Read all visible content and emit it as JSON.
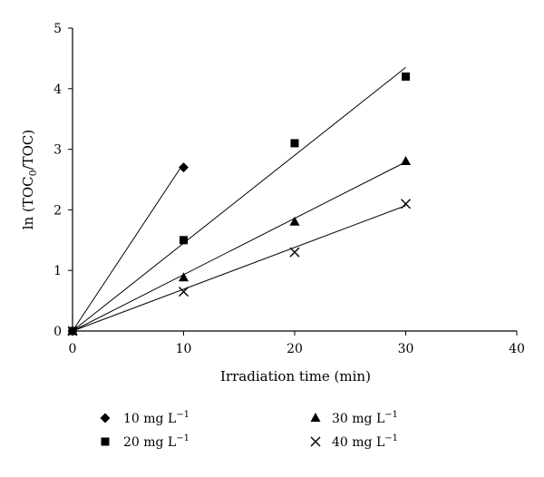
{
  "chart_data": {
    "type": "scatter",
    "xlabel": "Irradiation time (min)",
    "ylabel_main": "ln (TOC",
    "ylabel_sub": "0",
    "ylabel_tail": "/TOC)",
    "xlim": [
      0,
      40
    ],
    "ylim": [
      0,
      5
    ],
    "xticks": [
      "0",
      "10",
      "20",
      "30",
      "40"
    ],
    "yticks": [
      "0",
      "1",
      "2",
      "3",
      "4",
      "5"
    ],
    "grid": false,
    "legend_position": "bottom",
    "series": [
      {
        "name_main": "10 mg L",
        "name_sup": "−1",
        "marker": "diamond",
        "x": [
          0,
          10
        ],
        "y": [
          0,
          2.7
        ],
        "fit_slope": 0.277
      },
      {
        "name_main": "20 mg L",
        "name_sup": "−1",
        "marker": "square",
        "x": [
          0,
          10,
          20,
          30
        ],
        "y": [
          0,
          1.5,
          3.1,
          4.2
        ],
        "fit_slope": 0.145
      },
      {
        "name_main": "30 mg L",
        "name_sup": "−1",
        "marker": "triangle",
        "x": [
          0,
          10,
          20,
          30
        ],
        "y": [
          0,
          0.88,
          1.8,
          2.8
        ],
        "fit_slope": 0.093
      },
      {
        "name_main": "40 mg L",
        "name_sup": "−1",
        "marker": "cross",
        "x": [
          0,
          10,
          20,
          30
        ],
        "y": [
          0,
          0.65,
          1.3,
          2.1
        ],
        "fit_slope": 0.069
      }
    ]
  }
}
